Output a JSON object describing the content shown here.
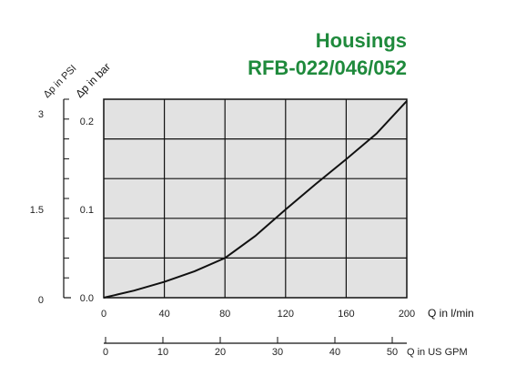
{
  "chart_data": {
    "type": "line",
    "title": "Housings",
    "subtitle": "RFB-022/046/052",
    "xlabel": "Q in l/min",
    "x2label": "Q in US GPM",
    "ylabel": "Δp in bar",
    "y2label": "Δp in PSI",
    "xlim": [
      0,
      200
    ],
    "ylim": [
      0,
      0.225
    ],
    "x_ticks": [
      "0",
      "40",
      "80",
      "120",
      "160",
      "200"
    ],
    "y_ticks": [
      "0.0",
      "0.1",
      "0.2"
    ],
    "x2_ticks": [
      "0",
      "10",
      "20",
      "30",
      "40",
      "50"
    ],
    "y2_ticks": [
      "0",
      "1.5",
      "3"
    ],
    "grid": true,
    "series": [
      {
        "x": [
          0,
          20,
          40,
          60,
          80,
          100,
          120,
          140,
          160,
          180,
          200
        ],
        "values": [
          0.0,
          0.008,
          0.018,
          0.03,
          0.045,
          0.07,
          0.1,
          0.129,
          0.157,
          0.186,
          0.223
        ]
      }
    ]
  },
  "colors": {
    "title": "#1f8a3c",
    "plot_background": "#e2e2e2",
    "grid": "#111111",
    "curve": "#111111"
  }
}
